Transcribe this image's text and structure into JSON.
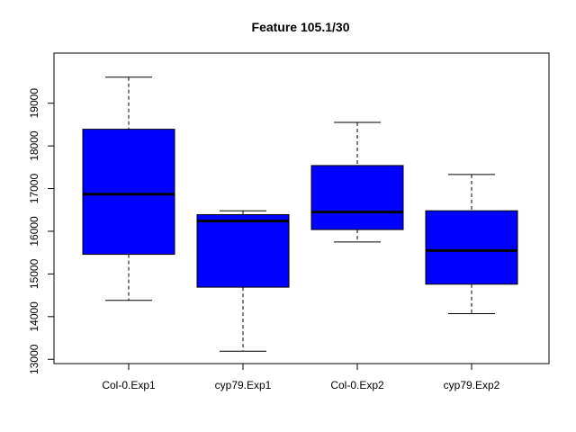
{
  "chart_data": {
    "type": "box",
    "title": "Feature  105.1/30",
    "xlabel": "",
    "ylabel": "",
    "categories": [
      "Col-0.Exp1",
      "cyp79.Exp1",
      "Col-0.Exp2",
      "cyp79.Exp2"
    ],
    "ylim": [
      12900,
      19900
    ],
    "yticks": [
      13000,
      14000,
      15000,
      16000,
      17000,
      18000,
      19000
    ],
    "ytick_labels": [
      "13000",
      "14000",
      "15000",
      "16000",
      "17000",
      "18000",
      "19000"
    ],
    "series": [
      {
        "boxes": [
          {
            "category": "Col-0.Exp1",
            "whisker_low": 14380,
            "q1": 15460,
            "median": 16870,
            "q3": 18390,
            "whisker_high": 19610
          },
          {
            "category": "cyp79.Exp1",
            "whisker_low": 13190,
            "q1": 14690,
            "median": 16240,
            "q3": 16390,
            "whisker_high": 16480
          },
          {
            "category": "Col-0.Exp2",
            "whisker_low": 15750,
            "q1": 16040,
            "median": 16450,
            "q3": 17540,
            "whisker_high": 18550
          },
          {
            "category": "cyp79.Exp2",
            "whisker_low": 14070,
            "q1": 14760,
            "median": 15550,
            "q3": 16480,
            "whisker_high": 17330
          }
        ]
      }
    ],
    "box_fill": "#0000ff",
    "box_border": "#000000",
    "median_color": "#000000",
    "whisker_style": "dashed",
    "grid": false,
    "legend": "none"
  }
}
